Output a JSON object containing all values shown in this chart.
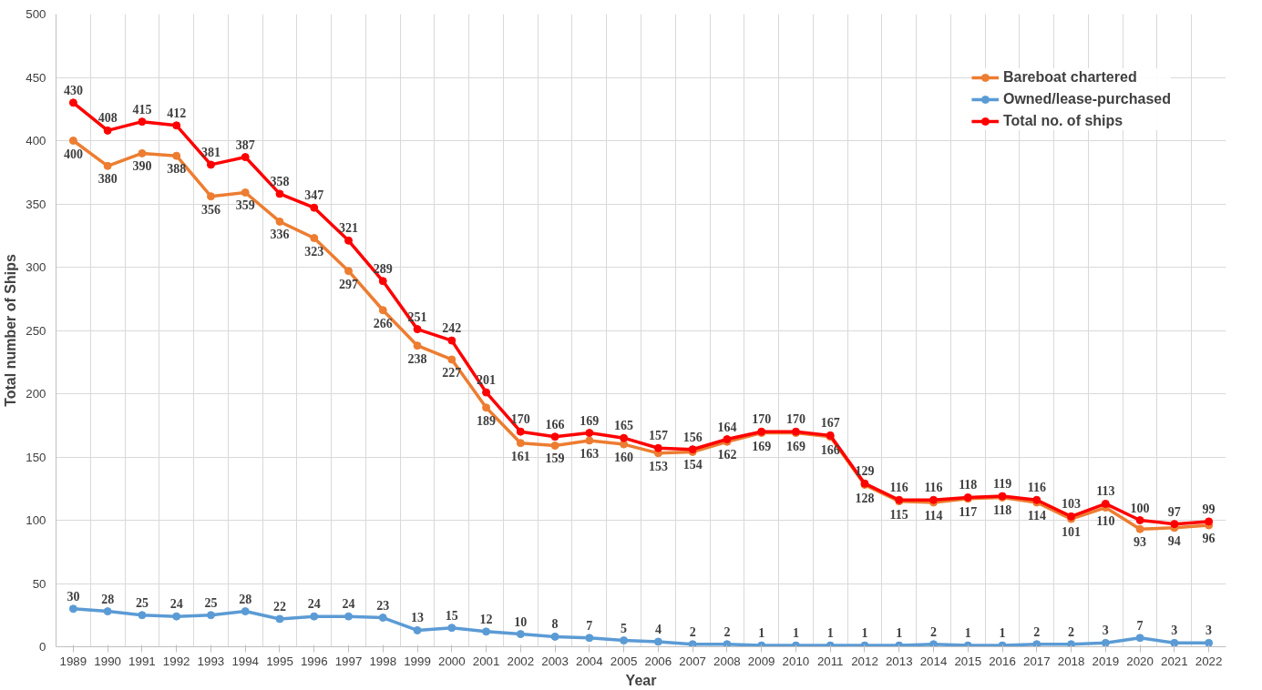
{
  "chart_data": {
    "type": "line",
    "xlabel": "Year",
    "ylabel": "Total number of Ships",
    "categories": [
      "1989",
      "1990",
      "1991",
      "1992",
      "1993",
      "1994",
      "1995",
      "1996",
      "1997",
      "1998",
      "1999",
      "2000",
      "2001",
      "2002",
      "2003",
      "2004",
      "2005",
      "2006",
      "2007",
      "2008",
      "2009",
      "2010",
      "2011",
      "2012",
      "2013",
      "2014",
      "2015",
      "2016",
      "2017",
      "2018",
      "2019",
      "2020",
      "2021",
      "2022"
    ],
    "series": [
      {
        "name": "Bareboat chartered",
        "color": "#ed7d31",
        "values": [
          400,
          380,
          390,
          388,
          356,
          359,
          336,
          323,
          297,
          266,
          238,
          227,
          189,
          161,
          159,
          163,
          160,
          153,
          154,
          162,
          169,
          169,
          166,
          128,
          115,
          114,
          117,
          118,
          114,
          101,
          110,
          93,
          94,
          96
        ]
      },
      {
        "name": "Owned/lease-purchased",
        "color": "#5b9bd5",
        "values": [
          30,
          28,
          25,
          24,
          25,
          28,
          22,
          24,
          24,
          23,
          13,
          15,
          12,
          10,
          8,
          7,
          5,
          4,
          2,
          2,
          1,
          1,
          1,
          1,
          1,
          2,
          1,
          1,
          2,
          2,
          3,
          7,
          3,
          3
        ]
      },
      {
        "name": "Total no. of ships",
        "color": "#ff0000",
        "values": [
          430,
          408,
          415,
          412,
          381,
          387,
          358,
          347,
          321,
          289,
          251,
          242,
          201,
          170,
          166,
          169,
          165,
          157,
          156,
          164,
          170,
          170,
          167,
          129,
          116,
          116,
          118,
          119,
          116,
          103,
          113,
          100,
          97,
          99
        ]
      }
    ],
    "ylim": [
      0,
      500
    ],
    "yticks": [
      0,
      50,
      100,
      150,
      200,
      250,
      300,
      350,
      400,
      450,
      500
    ],
    "grid": true,
    "legend": "top right",
    "marker": "circle",
    "line_style": "solid",
    "data_labels": true
  }
}
